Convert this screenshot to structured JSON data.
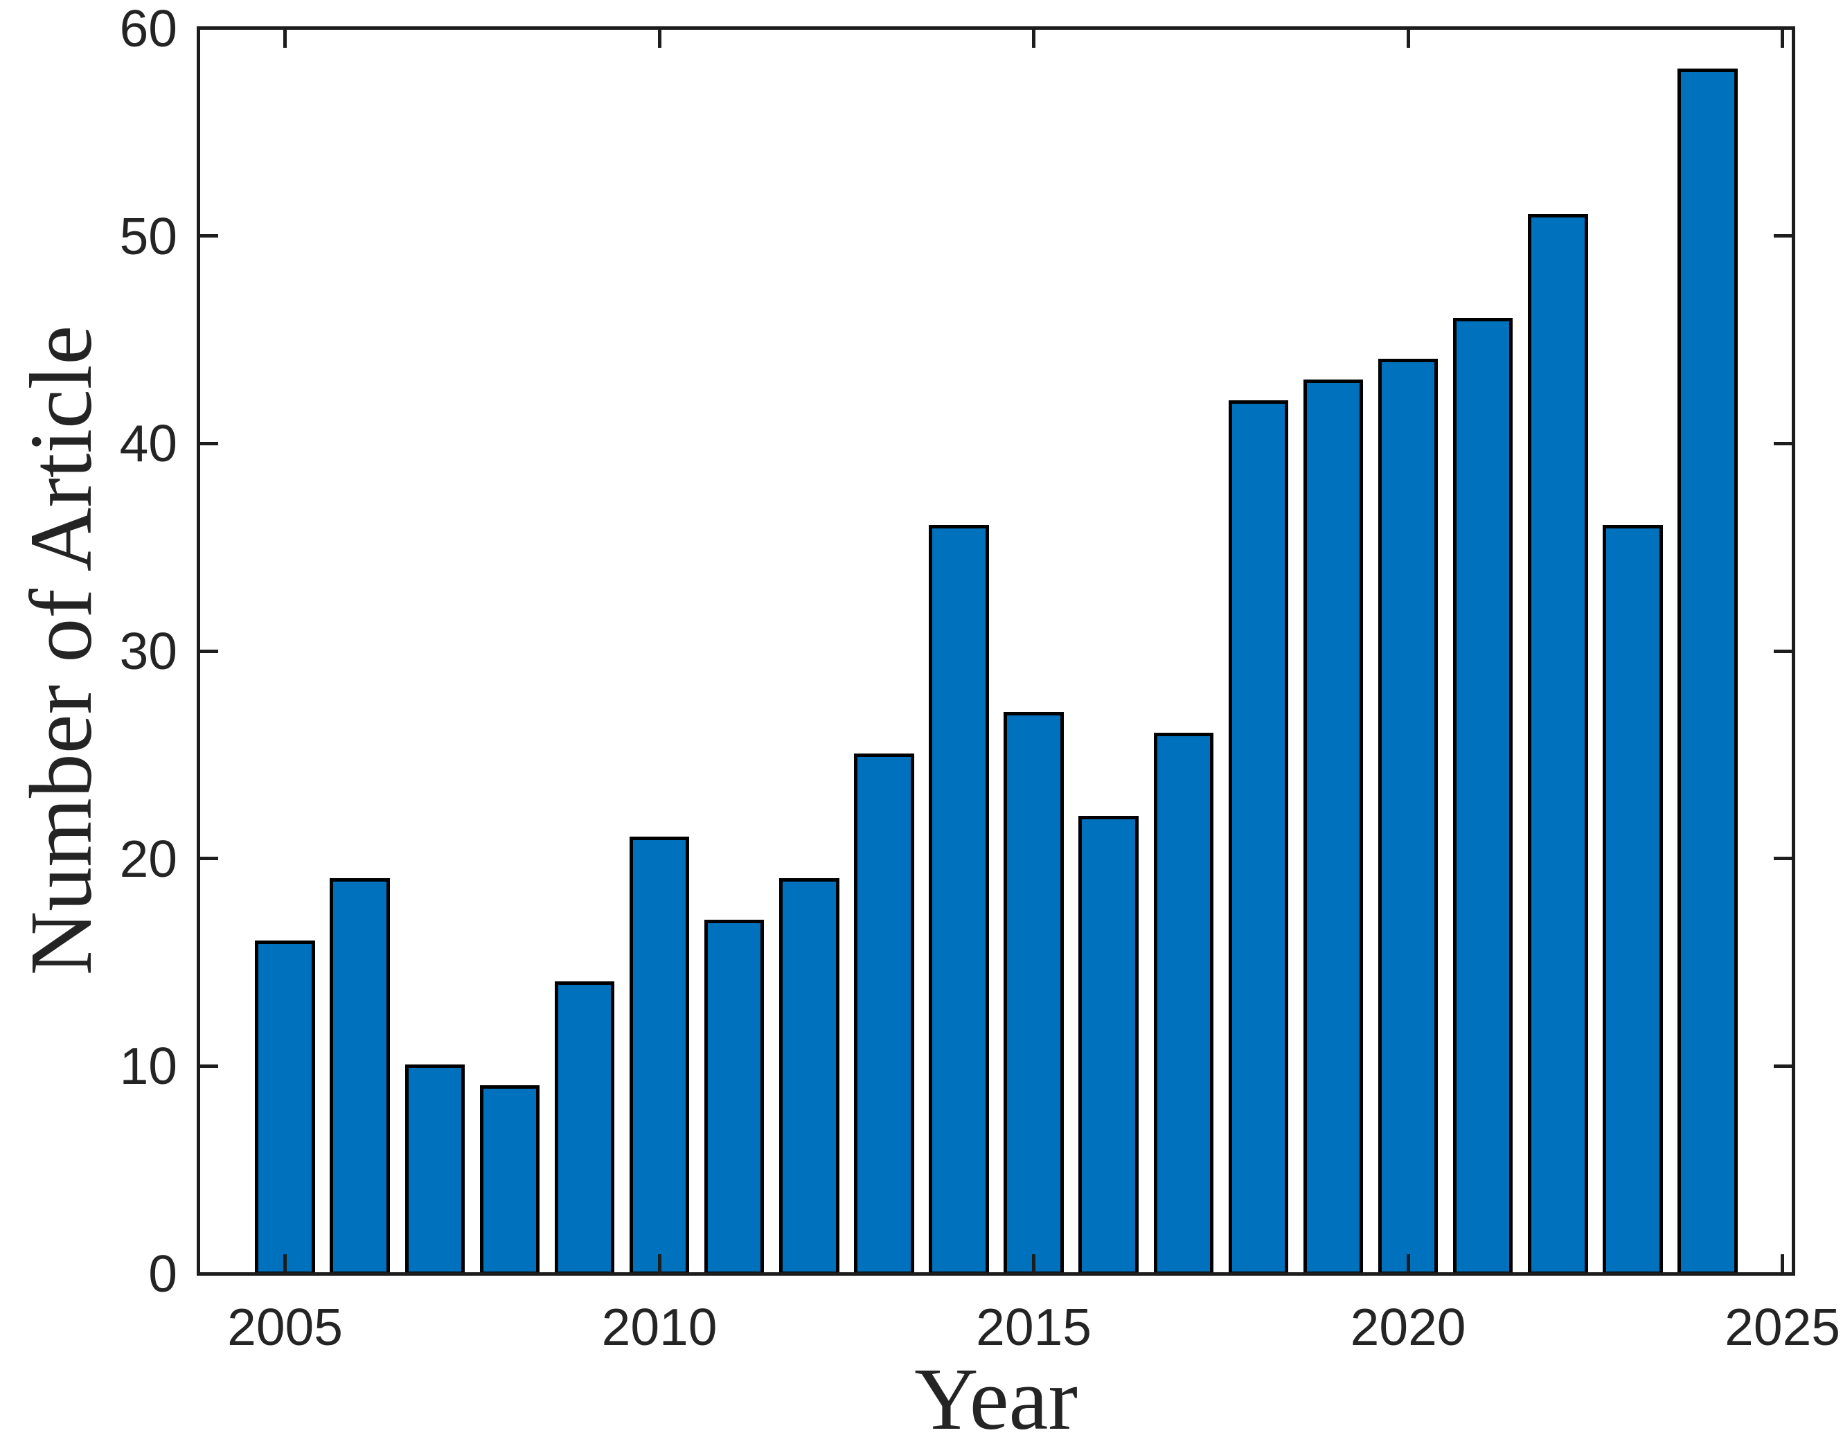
{
  "figure": {
    "background": "#ffffff"
  },
  "chart_data": {
    "type": "bar",
    "title": "",
    "xlabel": "Year",
    "ylabel": "Number of Article",
    "categories": [
      2005,
      2006,
      2007,
      2008,
      2009,
      2010,
      2011,
      2012,
      2013,
      2014,
      2015,
      2016,
      2017,
      2018,
      2019,
      2020,
      2021,
      2022,
      2023,
      2024
    ],
    "values": [
      16,
      19,
      10,
      9,
      14,
      21,
      17,
      19,
      25,
      36,
      27,
      22,
      26,
      42,
      43,
      44,
      46,
      51,
      36,
      58
    ],
    "x_ticks": [
      2005,
      2010,
      2015,
      2020,
      2025
    ],
    "y_ticks": [
      0,
      10,
      20,
      30,
      40,
      50,
      60
    ],
    "xlim": [
      2003.82,
      2025.17
    ],
    "ylim": [
      0,
      60
    ],
    "bar_width_years": 0.8,
    "grid": false,
    "legend": false,
    "box": true,
    "tick_direction": "in",
    "colors": {
      "bar_fill": "#0072BD",
      "bar_edge": "#000000",
      "axis": "#1d1d1d",
      "text": "#242424"
    }
  }
}
